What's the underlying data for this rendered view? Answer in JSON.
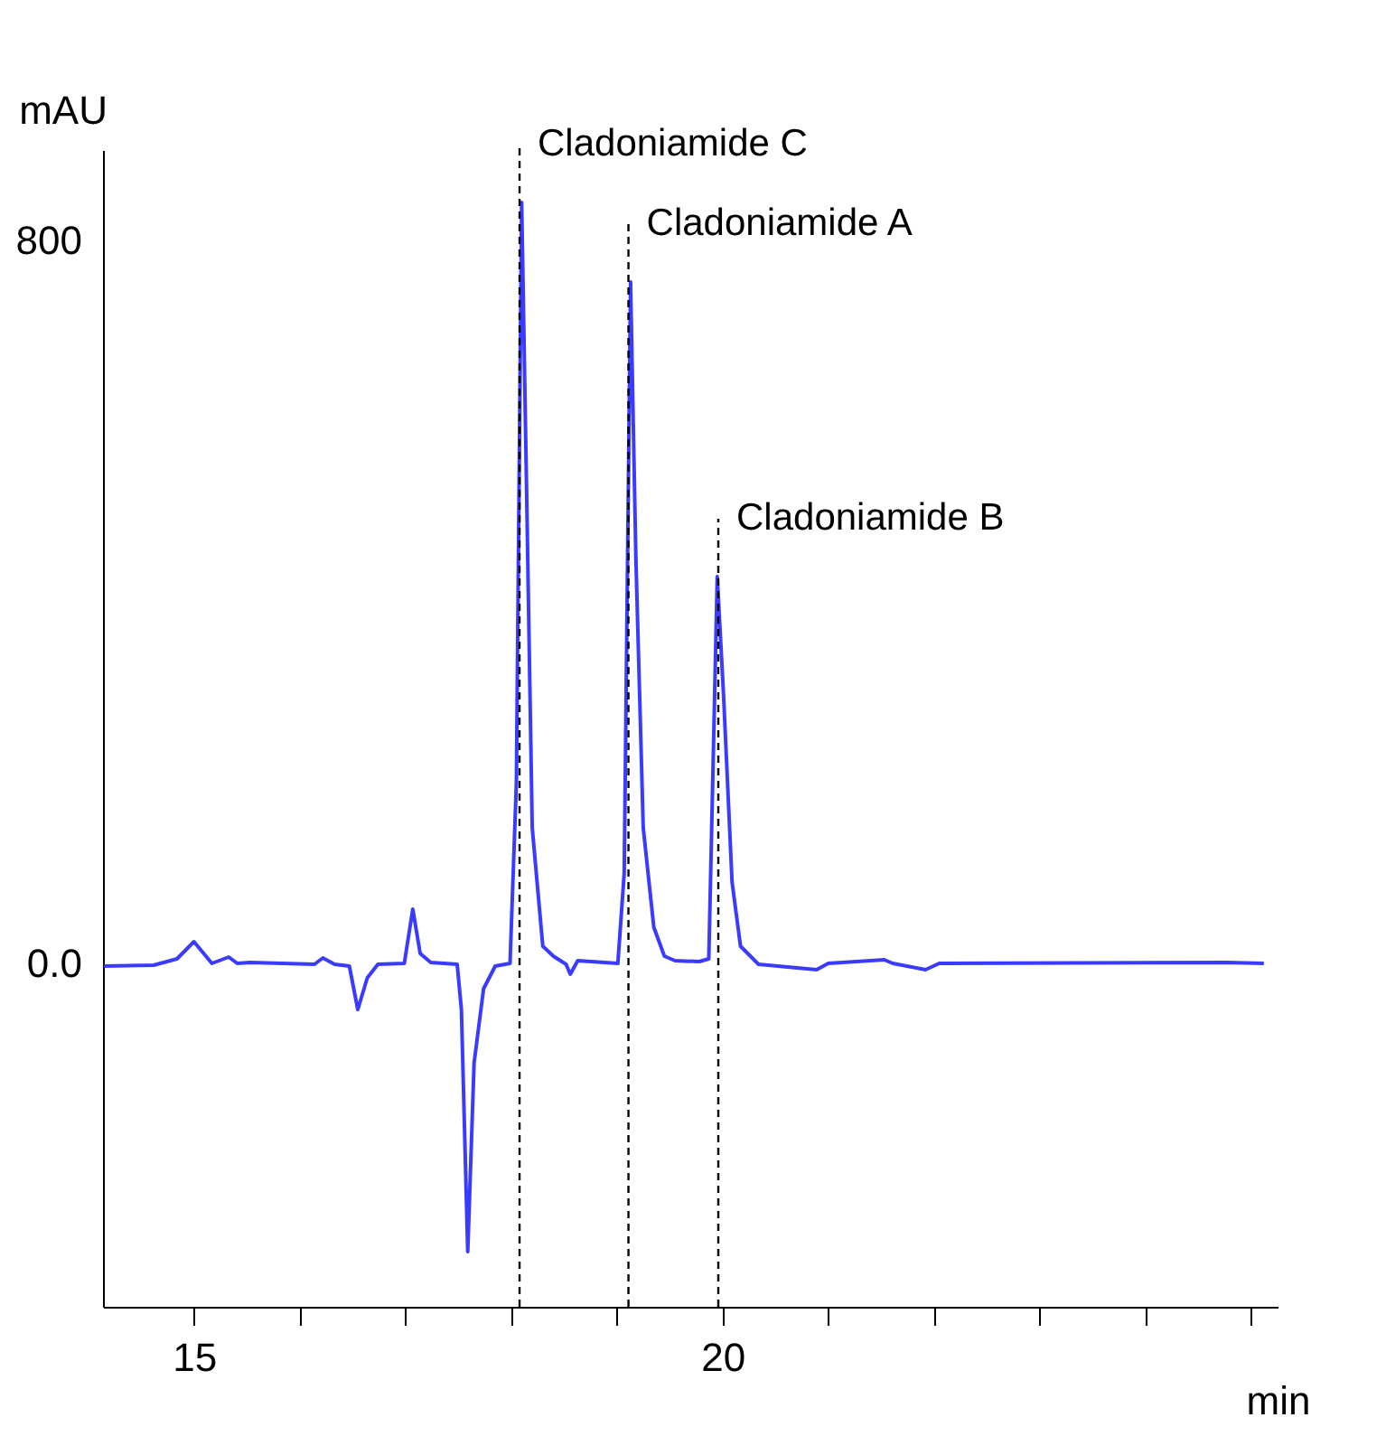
{
  "chart_data": {
    "type": "line",
    "xlabel": "min",
    "ylabel": "mAU",
    "xlim": [
      14.14,
      25.25
    ],
    "ylim": [
      -380,
      900
    ],
    "xticks": [
      15,
      {
        "value": 16,
        "label": null
      },
      {
        "value": 17,
        "label": null
      },
      {
        "value": 18,
        "label": null
      },
      {
        "value": 19,
        "label": null
      },
      20,
      {
        "value": 21,
        "label": null
      },
      {
        "value": 22,
        "label": null
      },
      {
        "value": 23,
        "label": null
      },
      {
        "value": 24,
        "label": null
      },
      {
        "value": 25,
        "label": null
      }
    ],
    "yticks": [
      {
        "value": 0,
        "label": "0.0"
      },
      800
    ],
    "grid": false,
    "marker": "none",
    "line_style": "solid",
    "series": [
      {
        "color": "#3b3bff",
        "x": [
          14.15,
          14.62,
          14.84,
          15.0,
          15.17,
          15.33,
          15.41,
          15.53,
          16.14,
          16.22,
          16.33,
          16.47,
          16.55,
          16.64,
          16.74,
          16.99,
          17.07,
          17.14,
          17.24,
          17.49,
          17.53,
          17.59,
          17.65,
          17.74,
          17.85,
          17.99,
          18.05,
          18.1,
          18.15,
          18.2,
          18.3,
          18.4,
          18.52,
          18.56,
          18.63,
          19.01,
          19.07,
          19.13,
          19.18,
          19.25,
          19.35,
          19.45,
          19.55,
          19.78,
          19.87,
          19.95,
          20.01,
          20.09,
          20.17,
          20.34,
          20.89,
          21.0,
          21.53,
          21.61,
          21.92,
          22.05,
          24.76,
          25.12
        ],
        "values": [
          -3,
          -2,
          5,
          24,
          0,
          7,
          0,
          1,
          -1,
          6,
          -1,
          -3,
          -51,
          -16,
          -1,
          0,
          60,
          11,
          1,
          -1,
          -51,
          -319,
          -110,
          -28,
          -3,
          0,
          200,
          842,
          500,
          150,
          19,
          8,
          -1,
          -12,
          3,
          0,
          100,
          754,
          450,
          150,
          40,
          8,
          3,
          2,
          5,
          428,
          296,
          90,
          19,
          -1,
          -7,
          0,
          4,
          0,
          -7,
          0,
          1,
          0
        ]
      }
    ],
    "ref_lines": [
      {
        "axis": "x",
        "value": 18.08,
        "label": "Cladoniamide C",
        "color": "#000000",
        "line_style": "dashed"
      },
      {
        "axis": "x",
        "value": 19.11,
        "label": "Cladoniamide A",
        "color": "#000000",
        "line_style": "dashed"
      },
      {
        "axis": "x",
        "value": 19.96,
        "label": "Cladoniamide B",
        "color": "#000000",
        "line_style": "dashed"
      }
    ]
  }
}
